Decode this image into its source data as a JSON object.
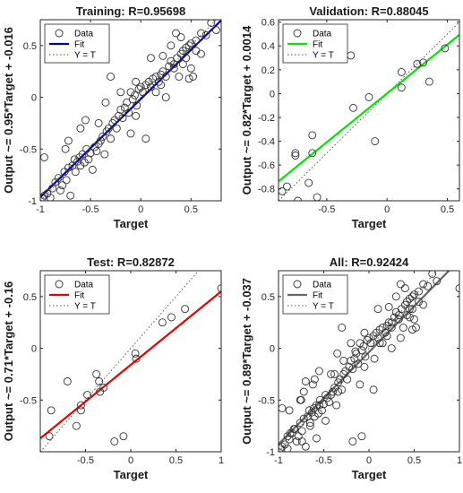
{
  "chart_data": [
    {
      "type": "scatter",
      "title": "Training: R=0.95698",
      "xlabel": "Target",
      "ylabel": "Output ~= 0.95*Target + -0.016",
      "xlim": [
        -1,
        0.8
      ],
      "ylim": [
        -1,
        0.75
      ],
      "xticks": [
        -1,
        -0.5,
        0,
        0.5
      ],
      "yticks": [
        -1,
        -0.5,
        0,
        0.5
      ],
      "fit": {
        "slope": 0.95,
        "intercept": -0.016,
        "color": "#0000bf"
      },
      "legend": {
        "position": "top-left",
        "entries": [
          "Data",
          "Fit",
          "Y = T"
        ]
      },
      "points": [
        [
          -0.98,
          -0.97
        ],
        [
          -0.96,
          -0.95
        ],
        [
          -0.93,
          -0.93
        ],
        [
          -0.9,
          -0.97
        ],
        [
          -0.88,
          -0.88
        ],
        [
          -0.85,
          -0.82
        ],
        [
          -0.82,
          -0.78
        ],
        [
          -0.8,
          -0.9
        ],
        [
          -0.78,
          -0.85
        ],
        [
          -0.76,
          -0.72
        ],
        [
          -0.74,
          -0.8
        ],
        [
          -0.72,
          -0.68
        ],
        [
          -0.7,
          -0.95
        ],
        [
          -0.68,
          -0.66
        ],
        [
          -0.66,
          -0.6
        ],
        [
          -0.65,
          -0.72
        ],
        [
          -0.63,
          -0.62
        ],
        [
          -0.61,
          -0.58
        ],
        [
          -0.6,
          -0.66
        ],
        [
          -0.58,
          -0.55
        ],
        [
          -0.56,
          -0.63
        ],
        [
          -0.54,
          -0.5
        ],
        [
          -0.52,
          -0.6
        ],
        [
          -0.5,
          -0.54
        ],
        [
          -0.48,
          -0.7
        ],
        [
          -0.46,
          -0.48
        ],
        [
          -0.44,
          -0.52
        ],
        [
          -0.42,
          -0.45
        ],
        [
          -0.4,
          -0.42
        ],
        [
          -0.38,
          -0.38
        ],
        [
          -0.36,
          -0.55
        ],
        [
          -0.34,
          -0.33
        ],
        [
          -0.32,
          -0.3
        ],
        [
          -0.3,
          -0.4
        ],
        [
          -0.28,
          -0.25
        ],
        [
          -0.26,
          -0.22
        ],
        [
          -0.24,
          -0.3
        ],
        [
          -0.22,
          -0.18
        ],
        [
          -0.2,
          -0.12
        ],
        [
          -0.18,
          -0.2
        ],
        [
          -0.16,
          -0.1
        ],
        [
          -0.14,
          -0.05
        ],
        [
          -0.12,
          -0.15
        ],
        [
          -0.1,
          0.05
        ],
        [
          -0.08,
          -0.02
        ],
        [
          -0.06,
          0.02
        ],
        [
          -0.04,
          -0.08
        ],
        [
          -0.02,
          0.08
        ],
        [
          0.0,
          0.1
        ],
        [
          0.02,
          0.05
        ],
        [
          0.05,
          0.12
        ],
        [
          0.08,
          0.15
        ],
        [
          0.1,
          0.1
        ],
        [
          0.12,
          0.18
        ],
        [
          0.15,
          0.2
        ],
        [
          0.18,
          0.15
        ],
        [
          0.2,
          0.22
        ],
        [
          0.22,
          0.25
        ],
        [
          0.25,
          0.2
        ],
        [
          0.28,
          0.3
        ],
        [
          0.3,
          0.35
        ],
        [
          0.33,
          0.32
        ],
        [
          0.36,
          0.38
        ],
        [
          0.4,
          0.42
        ],
        [
          0.42,
          0.45
        ],
        [
          0.45,
          0.38
        ],
        [
          0.48,
          0.5
        ],
        [
          0.5,
          0.52
        ],
        [
          0.55,
          0.55
        ],
        [
          0.6,
          0.62
        ],
        [
          0.65,
          0.6
        ],
        [
          0.7,
          0.72
        ],
        [
          0.75,
          0.65
        ],
        [
          -0.96,
          -0.58
        ],
        [
          -0.75,
          -0.5
        ],
        [
          -0.72,
          -0.42
        ],
        [
          -0.6,
          -0.3
        ],
        [
          -0.35,
          -0.05
        ],
        [
          -0.55,
          -0.22
        ],
        [
          -0.3,
          0.2
        ],
        [
          0.05,
          -0.4
        ],
        [
          -0.1,
          -0.35
        ],
        [
          0.1,
          0.38
        ],
        [
          0.2,
          0.12
        ],
        [
          0.35,
          0.62
        ],
        [
          0.4,
          0.58
        ],
        [
          0.52,
          0.2
        ],
        [
          0.3,
          0.5
        ],
        [
          0.6,
          0.42
        ],
        [
          0.5,
          0.28
        ],
        [
          0.45,
          0.48
        ],
        [
          0.42,
          0.32
        ],
        [
          0.55,
          0.45
        ],
        [
          0.48,
          0.18
        ],
        [
          -0.42,
          -0.25
        ],
        [
          0.15,
          0.05
        ],
        [
          -0.2,
          0.05
        ],
        [
          -0.05,
          0.15
        ],
        [
          0.25,
          0.0
        ],
        [
          0.33,
          0.28
        ],
        [
          -0.05,
          -0.18
        ],
        [
          0.22,
          0.4
        ],
        [
          0.38,
          0.2
        ]
      ]
    },
    {
      "type": "scatter",
      "title": "Validation: R=0.88045",
      "xlabel": "Target",
      "ylabel": "Output ~= 0.82*Target + 0.0014",
      "xlim": [
        -0.9,
        0.6
      ],
      "ylim": [
        -0.9,
        0.62
      ],
      "xticks": [
        -0.5,
        0,
        0.5
      ],
      "yticks": [
        -0.8,
        -0.6,
        -0.4,
        -0.2,
        0,
        0.2,
        0.4,
        0.6
      ],
      "fit": {
        "slope": 0.82,
        "intercept": 0.0014,
        "color": "#00e600"
      },
      "legend": {
        "position": "top-left",
        "entries": [
          "Data",
          "Fit",
          "Y = T"
        ]
      },
      "points": [
        [
          -0.87,
          -0.82
        ],
        [
          -0.83,
          -0.78
        ],
        [
          -0.76,
          -0.5
        ],
        [
          -0.76,
          -0.52
        ],
        [
          -0.74,
          -0.9
        ],
        [
          -0.65,
          -0.75
        ],
        [
          -0.62,
          -0.35
        ],
        [
          -0.62,
          -0.5
        ],
        [
          -0.58,
          -0.87
        ],
        [
          -0.3,
          0.32
        ],
        [
          -0.28,
          -0.12
        ],
        [
          -0.15,
          -0.03
        ],
        [
          -0.1,
          -0.4
        ],
        [
          0.12,
          0.05
        ],
        [
          0.12,
          0.18
        ],
        [
          0.25,
          0.25
        ],
        [
          0.3,
          0.26
        ],
        [
          0.35,
          0.1
        ],
        [
          0.48,
          0.38
        ]
      ]
    },
    {
      "type": "scatter",
      "title": "Test: R=0.82872",
      "xlabel": "Target",
      "ylabel": "Output ~= 0.71*Target + -0.16",
      "xlim": [
        -1,
        1
      ],
      "ylim": [
        -1,
        0.75
      ],
      "xticks": [
        -0.5,
        0,
        0.5,
        1
      ],
      "yticks": [
        -0.5,
        0,
        0.5
      ],
      "fit": {
        "slope": 0.71,
        "intercept": -0.16,
        "color": "#e60000"
      },
      "legend": {
        "position": "top-left",
        "entries": [
          "Data",
          "Fit",
          "Y = T"
        ]
      },
      "points": [
        [
          -0.9,
          -0.85
        ],
        [
          -0.88,
          -0.6
        ],
        [
          -0.7,
          -0.32
        ],
        [
          -0.6,
          -0.75
        ],
        [
          -0.55,
          -0.55
        ],
        [
          -0.55,
          -0.6
        ],
        [
          -0.48,
          -0.45
        ],
        [
          -0.38,
          -0.25
        ],
        [
          -0.35,
          -0.32
        ],
        [
          -0.34,
          -0.42
        ],
        [
          -0.3,
          -0.38
        ],
        [
          -0.18,
          -0.9
        ],
        [
          -0.08,
          -0.85
        ],
        [
          0.05,
          -0.05
        ],
        [
          0.06,
          -0.1
        ],
        [
          0.35,
          0.25
        ],
        [
          0.45,
          0.3
        ],
        [
          0.6,
          0.38
        ],
        [
          1.0,
          0.58
        ]
      ]
    },
    {
      "type": "scatter",
      "title": "All: R=0.92424",
      "xlabel": "Target",
      "ylabel": "Output ~= 0.89*Target + -0.037",
      "xlim": [
        -1,
        1
      ],
      "ylim": [
        -1,
        0.75
      ],
      "xticks": [
        -1,
        -0.5,
        0,
        0.5,
        1
      ],
      "yticks": [
        -1,
        -0.5,
        0,
        0.5
      ],
      "fit": {
        "slope": 0.89,
        "intercept": -0.037,
        "color": "#666666"
      },
      "legend": {
        "position": "top-left",
        "entries": [
          "Data",
          "Fit",
          "Y = T"
        ]
      },
      "points": [
        [
          -0.98,
          -0.97
        ],
        [
          -0.96,
          -0.95
        ],
        [
          -0.93,
          -0.93
        ],
        [
          -0.9,
          -0.97
        ],
        [
          -0.88,
          -0.88
        ],
        [
          -0.85,
          -0.82
        ],
        [
          -0.82,
          -0.78
        ],
        [
          -0.8,
          -0.9
        ],
        [
          -0.78,
          -0.85
        ],
        [
          -0.76,
          -0.72
        ],
        [
          -0.74,
          -0.8
        ],
        [
          -0.72,
          -0.68
        ],
        [
          -0.7,
          -0.95
        ],
        [
          -0.68,
          -0.66
        ],
        [
          -0.66,
          -0.6
        ],
        [
          -0.65,
          -0.72
        ],
        [
          -0.63,
          -0.62
        ],
        [
          -0.61,
          -0.58
        ],
        [
          -0.6,
          -0.66
        ],
        [
          -0.58,
          -0.55
        ],
        [
          -0.56,
          -0.63
        ],
        [
          -0.54,
          -0.5
        ],
        [
          -0.52,
          -0.6
        ],
        [
          -0.5,
          -0.54
        ],
        [
          -0.48,
          -0.7
        ],
        [
          -0.46,
          -0.48
        ],
        [
          -0.44,
          -0.52
        ],
        [
          -0.42,
          -0.45
        ],
        [
          -0.4,
          -0.42
        ],
        [
          -0.38,
          -0.38
        ],
        [
          -0.36,
          -0.55
        ],
        [
          -0.34,
          -0.33
        ],
        [
          -0.32,
          -0.3
        ],
        [
          -0.3,
          -0.4
        ],
        [
          -0.28,
          -0.25
        ],
        [
          -0.26,
          -0.22
        ],
        [
          -0.24,
          -0.3
        ],
        [
          -0.22,
          -0.18
        ],
        [
          -0.2,
          -0.12
        ],
        [
          -0.18,
          -0.2
        ],
        [
          -0.16,
          -0.1
        ],
        [
          -0.14,
          -0.05
        ],
        [
          -0.12,
          -0.15
        ],
        [
          -0.1,
          0.05
        ],
        [
          -0.08,
          -0.02
        ],
        [
          -0.06,
          0.02
        ],
        [
          -0.04,
          -0.08
        ],
        [
          -0.02,
          0.08
        ],
        [
          0.0,
          0.1
        ],
        [
          0.02,
          0.05
        ],
        [
          0.05,
          0.12
        ],
        [
          0.08,
          0.15
        ],
        [
          0.1,
          0.1
        ],
        [
          0.12,
          0.18
        ],
        [
          0.15,
          0.2
        ],
        [
          0.18,
          0.15
        ],
        [
          0.2,
          0.22
        ],
        [
          0.22,
          0.25
        ],
        [
          0.25,
          0.2
        ],
        [
          0.28,
          0.3
        ],
        [
          0.3,
          0.35
        ],
        [
          0.33,
          0.32
        ],
        [
          0.36,
          0.38
        ],
        [
          0.4,
          0.42
        ],
        [
          0.42,
          0.45
        ],
        [
          0.45,
          0.38
        ],
        [
          0.48,
          0.5
        ],
        [
          0.5,
          0.52
        ],
        [
          0.55,
          0.55
        ],
        [
          0.6,
          0.62
        ],
        [
          0.65,
          0.6
        ],
        [
          0.7,
          0.72
        ],
        [
          0.75,
          0.65
        ],
        [
          -0.96,
          -0.58
        ],
        [
          -0.75,
          -0.5
        ],
        [
          -0.72,
          -0.42
        ],
        [
          -0.6,
          -0.3
        ],
        [
          -0.35,
          -0.05
        ],
        [
          -0.55,
          -0.22
        ],
        [
          -0.3,
          0.2
        ],
        [
          0.05,
          -0.4
        ],
        [
          -0.1,
          -0.35
        ],
        [
          0.1,
          0.38
        ],
        [
          0.2,
          0.12
        ],
        [
          0.35,
          0.62
        ],
        [
          0.4,
          0.58
        ],
        [
          0.52,
          0.2
        ],
        [
          0.3,
          0.5
        ],
        [
          0.6,
          0.42
        ],
        [
          0.5,
          0.28
        ],
        [
          0.45,
          0.48
        ],
        [
          0.42,
          0.32
        ],
        [
          0.55,
          0.45
        ],
        [
          0.48,
          0.18
        ],
        [
          -0.42,
          -0.25
        ],
        [
          0.15,
          0.05
        ],
        [
          -0.2,
          0.05
        ],
        [
          -0.05,
          0.15
        ],
        [
          0.25,
          0.0
        ],
        [
          0.33,
          0.28
        ],
        [
          -0.05,
          -0.18
        ],
        [
          0.22,
          0.4
        ],
        [
          0.38,
          0.2
        ],
        [
          -0.87,
          -0.82
        ],
        [
          -0.83,
          -0.78
        ],
        [
          -0.76,
          -0.5
        ],
        [
          -0.74,
          -0.9
        ],
        [
          -0.65,
          -0.75
        ],
        [
          -0.62,
          -0.35
        ],
        [
          -0.58,
          -0.87
        ],
        [
          -0.28,
          -0.12
        ],
        [
          -0.15,
          -0.03
        ],
        [
          0.12,
          0.05
        ],
        [
          0.25,
          0.25
        ],
        [
          0.35,
          0.1
        ],
        [
          0.48,
          0.38
        ],
        [
          -0.9,
          -0.85
        ],
        [
          -0.88,
          -0.6
        ],
        [
          -0.7,
          -0.32
        ],
        [
          -0.55,
          -0.55
        ],
        [
          -0.48,
          -0.45
        ],
        [
          -0.38,
          -0.25
        ],
        [
          -0.34,
          -0.42
        ],
        [
          -0.18,
          -0.9
        ],
        [
          -0.08,
          -0.85
        ],
        [
          0.06,
          -0.1
        ],
        [
          0.45,
          0.3
        ],
        [
          1.0,
          0.58
        ]
      ]
    }
  ]
}
